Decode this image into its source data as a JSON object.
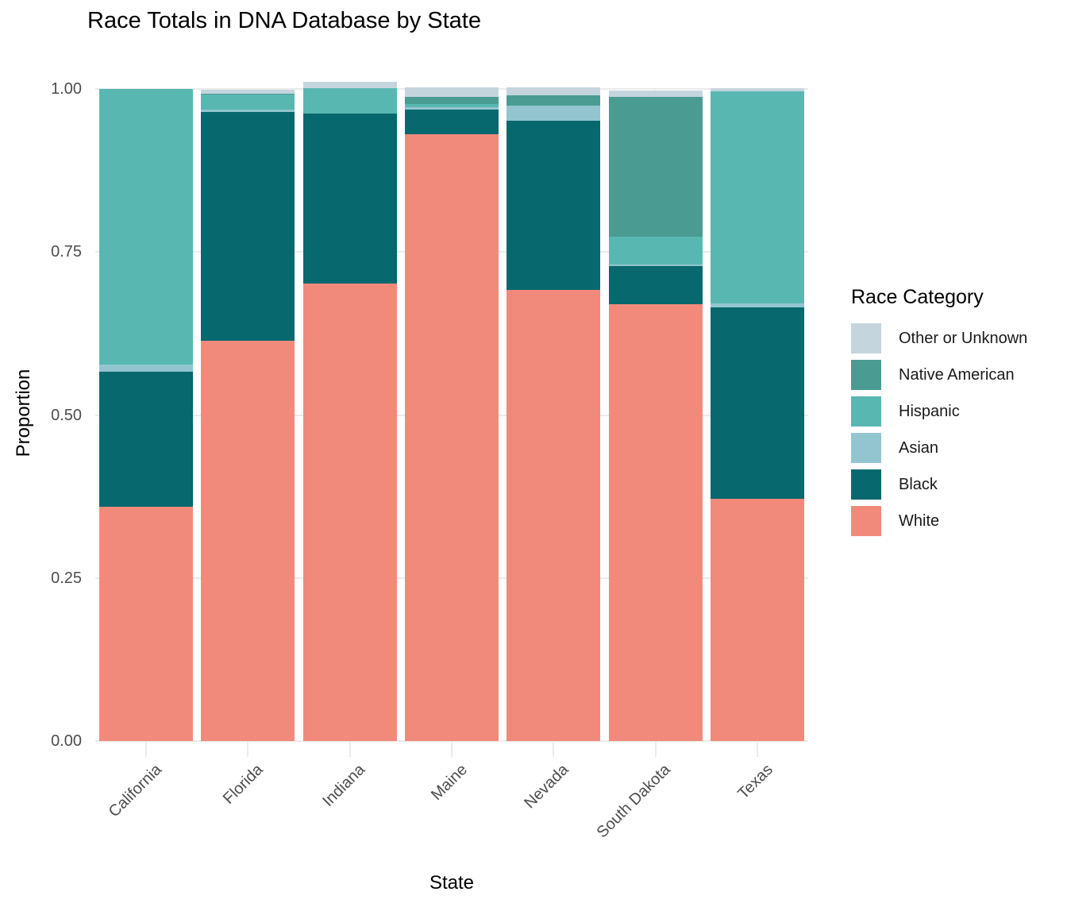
{
  "title": "Race Totals in DNA Database by State",
  "chart_data": {
    "type": "bar",
    "stacked": true,
    "orientation": "vertical",
    "title": "Race Totals in DNA Database by State",
    "xlabel": "State",
    "ylabel": "Proportion",
    "ylim": [
      0,
      1.0
    ],
    "grid": true,
    "y_ticks": [
      0,
      0.25,
      0.5,
      0.75,
      1.0
    ],
    "y_tick_labels": [
      "0.00",
      "0.25",
      "0.50",
      "0.75",
      "1.00"
    ],
    "categories": [
      "California",
      "Florida",
      "Indiana",
      "Maine",
      "Nevada",
      "South Dakota",
      "Texas"
    ],
    "legend_title": "Race Category",
    "legend_position": "right",
    "series": [
      {
        "name": "Other or Unknown",
        "color": "#c4d5de",
        "values": [
          0,
          0.006,
          0.01,
          0.014,
          0.012,
          0.01,
          0.005
        ]
      },
      {
        "name": "Native American",
        "color": "#4a9c93",
        "values": [
          0,
          0.001,
          0,
          0.011,
          0.016,
          0.215,
          0
        ]
      },
      {
        "name": "Hispanic",
        "color": "#58b8b1",
        "values": [
          0.423,
          0.024,
          0.039,
          0.005,
          0,
          0.042,
          0.325
        ]
      },
      {
        "name": "Asian",
        "color": "#92c5cf",
        "values": [
          0.011,
          0.003,
          0,
          0.004,
          0.023,
          0.002,
          0.006
        ]
      },
      {
        "name": "Black",
        "color": "#07686e",
        "values": [
          0.207,
          0.351,
          0.261,
          0.037,
          0.259,
          0.059,
          0.293
        ]
      },
      {
        "name": "White",
        "color": "#f28a7c",
        "values": [
          0.359,
          0.614,
          0.701,
          0.931,
          0.692,
          0.67,
          0.372
        ]
      }
    ],
    "colors": {
      "gridline": "#ebebeb",
      "axis_text": "#4d4d4d",
      "text": "#000000"
    }
  }
}
